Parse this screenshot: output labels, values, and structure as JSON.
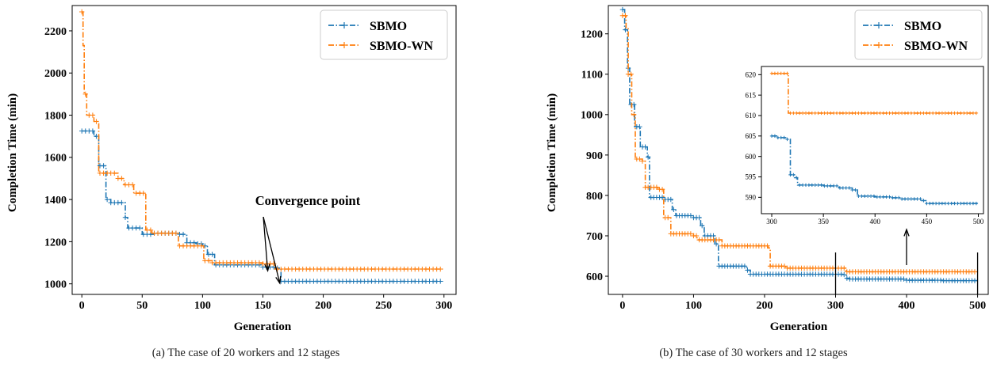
{
  "colors": {
    "sbmo": "#1f77b4",
    "sbmo_wn": "#ff7f0e"
  },
  "chart_data": [
    {
      "type": "line",
      "xlabel": "Generation",
      "ylabel": "Completion Time (min)",
      "xlim": [
        -8,
        310
      ],
      "ylim": [
        950,
        2320
      ],
      "xticks": [
        0,
        50,
        100,
        150,
        200,
        250,
        300
      ],
      "yticks": [
        1000,
        1200,
        1400,
        1600,
        1800,
        2000,
        2200
      ],
      "legend_position": "top-right",
      "annotation": "Convergence point",
      "series": [
        {
          "name": "SBMO",
          "color": "#1f77b4",
          "xmax": 299,
          "points": [
            [
              0,
              1725
            ],
            [
              7,
              1725
            ],
            [
              10,
              1700
            ],
            [
              14,
              1560
            ],
            [
              20,
              1400
            ],
            [
              24,
              1385
            ],
            [
              33,
              1385
            ],
            [
              36,
              1315
            ],
            [
              38,
              1265
            ],
            [
              48,
              1265
            ],
            [
              50,
              1235
            ],
            [
              60,
              1240
            ],
            [
              80,
              1235
            ],
            [
              85,
              1230
            ],
            [
              87,
              1195
            ],
            [
              95,
              1190
            ],
            [
              100,
              1180
            ],
            [
              104,
              1140
            ],
            [
              110,
              1090
            ],
            [
              150,
              1080
            ],
            [
              160,
              1075
            ],
            [
              165,
              1012
            ],
            [
              299,
              1010
            ]
          ]
        },
        {
          "name": "SBMO-WN",
          "color": "#ff7f0e",
          "xmax": 299,
          "points": [
            [
              0,
              2290
            ],
            [
              1,
              2130
            ],
            [
              2,
              1900
            ],
            [
              4,
              1800
            ],
            [
              10,
              1770
            ],
            [
              14,
              1525
            ],
            [
              26,
              1525
            ],
            [
              30,
              1500
            ],
            [
              35,
              1470
            ],
            [
              43,
              1430
            ],
            [
              53,
              1255
            ],
            [
              58,
              1240
            ],
            [
              80,
              1180
            ],
            [
              98,
              1180
            ],
            [
              101,
              1110
            ],
            [
              108,
              1100
            ],
            [
              150,
              1095
            ],
            [
              160,
              1070
            ],
            [
              299,
              1070
            ]
          ]
        }
      ]
    },
    {
      "type": "line",
      "xlabel": "Generation",
      "ylabel": "Completion Time (min)",
      "xlim": [
        -20,
        515
      ],
      "ylim": [
        555,
        1270
      ],
      "xticks": [
        0,
        100,
        200,
        300,
        400,
        500
      ],
      "yticks": [
        600,
        700,
        800,
        900,
        1000,
        1100,
        1200
      ],
      "legend_position": "top-right",
      "series": [
        {
          "name": "SBMO",
          "color": "#1f77b4",
          "xmax": 499,
          "points": [
            [
              0,
              1260
            ],
            [
              3,
              1210
            ],
            [
              7,
              1115
            ],
            [
              10,
              1025
            ],
            [
              17,
              970
            ],
            [
              25,
              920
            ],
            [
              35,
              895
            ],
            [
              38,
              795
            ],
            [
              60,
              790
            ],
            [
              70,
              765
            ],
            [
              75,
              750
            ],
            [
              100,
              745
            ],
            [
              110,
              725
            ],
            [
              115,
              700
            ],
            [
              130,
              680
            ],
            [
              135,
              625
            ],
            [
              175,
              615
            ],
            [
              180,
              605
            ],
            [
              300,
              605
            ],
            [
              310,
              604
            ],
            [
              315,
              595
            ],
            [
              320,
              593
            ],
            [
              400,
              590
            ],
            [
              450,
              589
            ],
            [
              499,
              588
            ]
          ]
        },
        {
          "name": "SBMO-WN",
          "color": "#ff7f0e",
          "xmax": 499,
          "points": [
            [
              0,
              1245
            ],
            [
              5,
              1215
            ],
            [
              8,
              1100
            ],
            [
              13,
              1000
            ],
            [
              18,
              890
            ],
            [
              28,
              885
            ],
            [
              32,
              820
            ],
            [
              50,
              815
            ],
            [
              58,
              745
            ],
            [
              68,
              705
            ],
            [
              100,
              700
            ],
            [
              105,
              690
            ],
            [
              130,
              690
            ],
            [
              140,
              675
            ],
            [
              205,
              670
            ],
            [
              208,
              625
            ],
            [
              230,
              620
            ],
            [
              305,
              620
            ],
            [
              315,
              611
            ],
            [
              499,
              611
            ]
          ]
        }
      ],
      "inset": {
        "xlim": [
          290,
          505
        ],
        "ylim": [
          586,
          622
        ],
        "xticks": [
          300,
          350,
          400,
          450,
          500
        ],
        "yticks": [
          590,
          595,
          600,
          605,
          610,
          615,
          620
        ],
        "series": [
          {
            "name": "SBMO",
            "color": "#1f77b4",
            "xmax": 499,
            "points": [
              [
                300,
                605
              ],
              [
                303,
                605
              ],
              [
                306,
                604.6
              ],
              [
                315,
                604.2
              ],
              [
                318,
                595.5
              ],
              [
                322,
                594.8
              ],
              [
                325,
                593
              ],
              [
                350,
                592.8
              ],
              [
                365,
                592.3
              ],
              [
                378,
                591.8
              ],
              [
                383,
                590.3
              ],
              [
                400,
                590.1
              ],
              [
                415,
                589.9
              ],
              [
                425,
                589.6
              ],
              [
                445,
                589.2
              ],
              [
                450,
                588.5
              ],
              [
                499,
                588.2
              ]
            ]
          },
          {
            "name": "SBMO-WN",
            "color": "#ff7f0e",
            "xmax": 499,
            "points": [
              [
                300,
                620.3
              ],
              [
                315,
                620.3
              ],
              [
                316,
                610.6
              ],
              [
                499,
                610.6
              ]
            ]
          }
        ]
      }
    }
  ],
  "captions": {
    "a": "(a)  The case of 20 workers and 12 stages",
    "b": "(b)  The case of 30 workers and 12 stages"
  }
}
